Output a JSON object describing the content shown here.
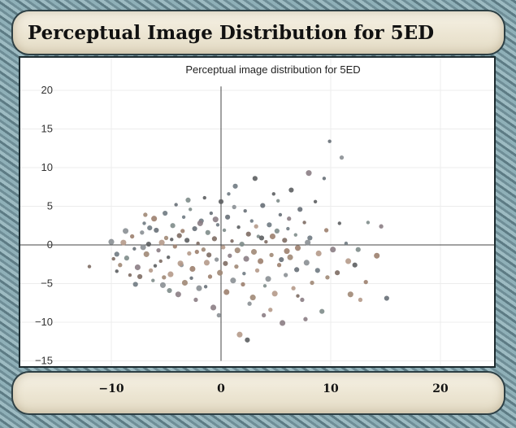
{
  "card": {
    "title": "Perceptual Image Distribution for 5ED"
  },
  "chart_data": {
    "type": "scatter",
    "title": "Perceptual image distribution for 5ED",
    "xlabel": "",
    "ylabel": "",
    "xlim": [
      -14,
      24
    ],
    "ylim": [
      -15,
      22
    ],
    "xticks": [
      -10,
      0,
      10,
      20
    ],
    "yticks": [
      20,
      15,
      10,
      5,
      0,
      -5,
      -10,
      -15
    ],
    "grid": true,
    "points": [
      [
        -12,
        -2.8
      ],
      [
        -10,
        0.4
      ],
      [
        -9.5,
        -1.2
      ],
      [
        -9.2,
        -2.6
      ],
      [
        -9.5,
        -3.4
      ],
      [
        -8.9,
        0.3
      ],
      [
        -8.6,
        -1.7
      ],
      [
        -8.1,
        1.1
      ],
      [
        -7.9,
        -0.5
      ],
      [
        -7.6,
        -2.9
      ],
      [
        -7.4,
        -4.1
      ],
      [
        -7.2,
        1.6
      ],
      [
        -7,
        2.8
      ],
      [
        -6.8,
        -1.2
      ],
      [
        -6.6,
        0.1
      ],
      [
        -6.4,
        -3.3
      ],
      [
        -6.2,
        -4.6
      ],
      [
        -6.1,
        3.4
      ],
      [
        -5.9,
        1.9
      ],
      [
        -5.7,
        -0.7
      ],
      [
        -5.5,
        -2.1
      ],
      [
        -5.3,
        -5.2
      ],
      [
        -5.1,
        4.1
      ],
      [
        -5,
        0.9
      ],
      [
        -4.8,
        -1.6
      ],
      [
        -4.6,
        -3.8
      ],
      [
        -4.4,
        2.5
      ],
      [
        -4.2,
        -0.2
      ],
      [
        -4.1,
        5.2
      ],
      [
        -3.9,
        -6.4
      ],
      [
        -3.8,
        1.2
      ],
      [
        -3.6,
        -2.6
      ],
      [
        -3.4,
        3.6
      ],
      [
        -3.3,
        -4.9
      ],
      [
        -3.1,
        0.6
      ],
      [
        -2.9,
        -1.1
      ],
      [
        -2.8,
        4.6
      ],
      [
        -2.6,
        -3.1
      ],
      [
        -2.4,
        2.1
      ],
      [
        -2.3,
        -7.1
      ],
      [
        -2.1,
        0.2
      ],
      [
        -2,
        -5.6
      ],
      [
        -1.8,
        3.1
      ],
      [
        -1.6,
        -0.6
      ],
      [
        -1.5,
        6.1
      ],
      [
        -1.3,
        -2.3
      ],
      [
        -1.2,
        1.6
      ],
      [
        -1,
        -4.1
      ],
      [
        -0.9,
        4.1
      ],
      [
        -0.7,
        -8.1
      ],
      [
        -0.6,
        0.8
      ],
      [
        -0.4,
        -1.9
      ],
      [
        -0.3,
        2.6
      ],
      [
        -0.1,
        -3.6
      ],
      [
        0,
        5.6
      ],
      [
        0.2,
        -0.3
      ],
      [
        0.3,
        1.9
      ],
      [
        0.5,
        -6.1
      ],
      [
        0.6,
        3.6
      ],
      [
        0.8,
        -1.4
      ],
      [
        1,
        0.5
      ],
      [
        1.1,
        -4.6
      ],
      [
        1.3,
        7.6
      ],
      [
        1.4,
        -2.8
      ],
      [
        1.6,
        2.3
      ],
      [
        1.7,
        -11.6
      ],
      [
        1.9,
        0.1
      ],
      [
        2,
        -5.1
      ],
      [
        2.2,
        4.4
      ],
      [
        2.3,
        -1.8
      ],
      [
        2.5,
        1.4
      ],
      [
        2.6,
        -7.6
      ],
      [
        2.8,
        3.1
      ],
      [
        3,
        -0.9
      ],
      [
        3.1,
        8.6
      ],
      [
        3.3,
        -3.3
      ],
      [
        3.4,
        1.1
      ],
      [
        3.6,
        -2.1
      ],
      [
        3.8,
        5.1
      ],
      [
        3.9,
        -9.1
      ],
      [
        4.1,
        0.4
      ],
      [
        4.3,
        -4.4
      ],
      [
        4.4,
        2.6
      ],
      [
        4.6,
        -1.3
      ],
      [
        4.8,
        6.6
      ],
      [
        4.9,
        -6.3
      ],
      [
        5.1,
        1.8
      ],
      [
        5.3,
        -2.6
      ],
      [
        5.4,
        3.9
      ],
      [
        5.6,
        -10.1
      ],
      [
        5.8,
        0.6
      ],
      [
        5.9,
        -3.9
      ],
      [
        6.1,
        2.1
      ],
      [
        6.3,
        -1.6
      ],
      [
        6.4,
        7.1
      ],
      [
        6.6,
        -5.6
      ],
      [
        6.8,
        1.3
      ],
      [
        7,
        -0.4
      ],
      [
        7.2,
        4.6
      ],
      [
        7.4,
        -7.1
      ],
      [
        7.6,
        2.9
      ],
      [
        7.8,
        -2.3
      ],
      [
        8.1,
        0.9
      ],
      [
        8.3,
        -4.9
      ],
      [
        8.6,
        5.6
      ],
      [
        8.9,
        -1.1
      ],
      [
        9.2,
        -8.6
      ],
      [
        9.6,
        1.9
      ],
      [
        9.9,
        13.4
      ],
      [
        10.2,
        -0.6
      ],
      [
        10.6,
        -3.6
      ],
      [
        11,
        11.3
      ],
      [
        11.4,
        0.2
      ],
      [
        11.8,
        -6.4
      ],
      [
        12.2,
        -2.6
      ],
      [
        12.7,
        -7.1
      ],
      [
        13.4,
        2.9
      ],
      [
        14.2,
        -1.4
      ],
      [
        15.1,
        -6.9
      ],
      [
        14.6,
        2.4
      ],
      [
        -8.3,
        -3.9
      ],
      [
        -7.1,
        -0.3
      ],
      [
        -6.5,
        2.2
      ],
      [
        -5.2,
        -4.2
      ],
      [
        -4.5,
        0.7
      ],
      [
        -3.7,
        -2.4
      ],
      [
        -3,
        5.8
      ],
      [
        -2.2,
        -0.9
      ],
      [
        -1.4,
        -5.4
      ],
      [
        -0.5,
        3.3
      ],
      [
        0.4,
        -2.4
      ],
      [
        1.2,
        4.9
      ],
      [
        2.1,
        -3.7
      ],
      [
        2.9,
        -6.8
      ],
      [
        3.7,
        0.9
      ],
      [
        4.5,
        -8.4
      ],
      [
        5.2,
        5.7
      ],
      [
        6,
        -0.8
      ],
      [
        6.9,
        -3.2
      ],
      [
        7.7,
        -9.6
      ],
      [
        -9.8,
        -1.8
      ],
      [
        -8.7,
        1.8
      ],
      [
        -7.8,
        -5.1
      ],
      [
        -6.9,
        3.9
      ],
      [
        -6,
        -2.7
      ],
      [
        -5.4,
        0.3
      ],
      [
        -4.7,
        -5.9
      ],
      [
        -3.5,
        1.8
      ],
      [
        -2.7,
        -4.3
      ],
      [
        -1.9,
        2.8
      ],
      [
        -1.1,
        -1.3
      ],
      [
        -0.2,
        -9.1
      ],
      [
        0.7,
        6.6
      ],
      [
        1.5,
        -0.7
      ],
      [
        2.4,
        -12.3
      ],
      [
        3.2,
        2.4
      ],
      [
        4,
        -5.3
      ],
      [
        4.7,
        1.1
      ],
      [
        5.5,
        -1.9
      ],
      [
        6.2,
        3.4
      ],
      [
        7,
        -6.6
      ],
      [
        7.9,
        0.3
      ],
      [
        8.8,
        -3.3
      ],
      [
        9.7,
        -4.2
      ],
      [
        10.8,
        2.8
      ],
      [
        11.6,
        -2.1
      ],
      [
        12.5,
        -0.6
      ],
      [
        13.2,
        -4.8
      ],
      [
        9.4,
        8.6
      ],
      [
        8,
        9.3
      ]
    ],
    "colors": [
      "#7d6b63",
      "#8a8f93",
      "#6f7a82",
      "#a08876",
      "#5c5e61",
      "#b59a8a",
      "#7e8c8a",
      "#9c7f6e",
      "#676f77",
      "#8b7d84"
    ]
  }
}
